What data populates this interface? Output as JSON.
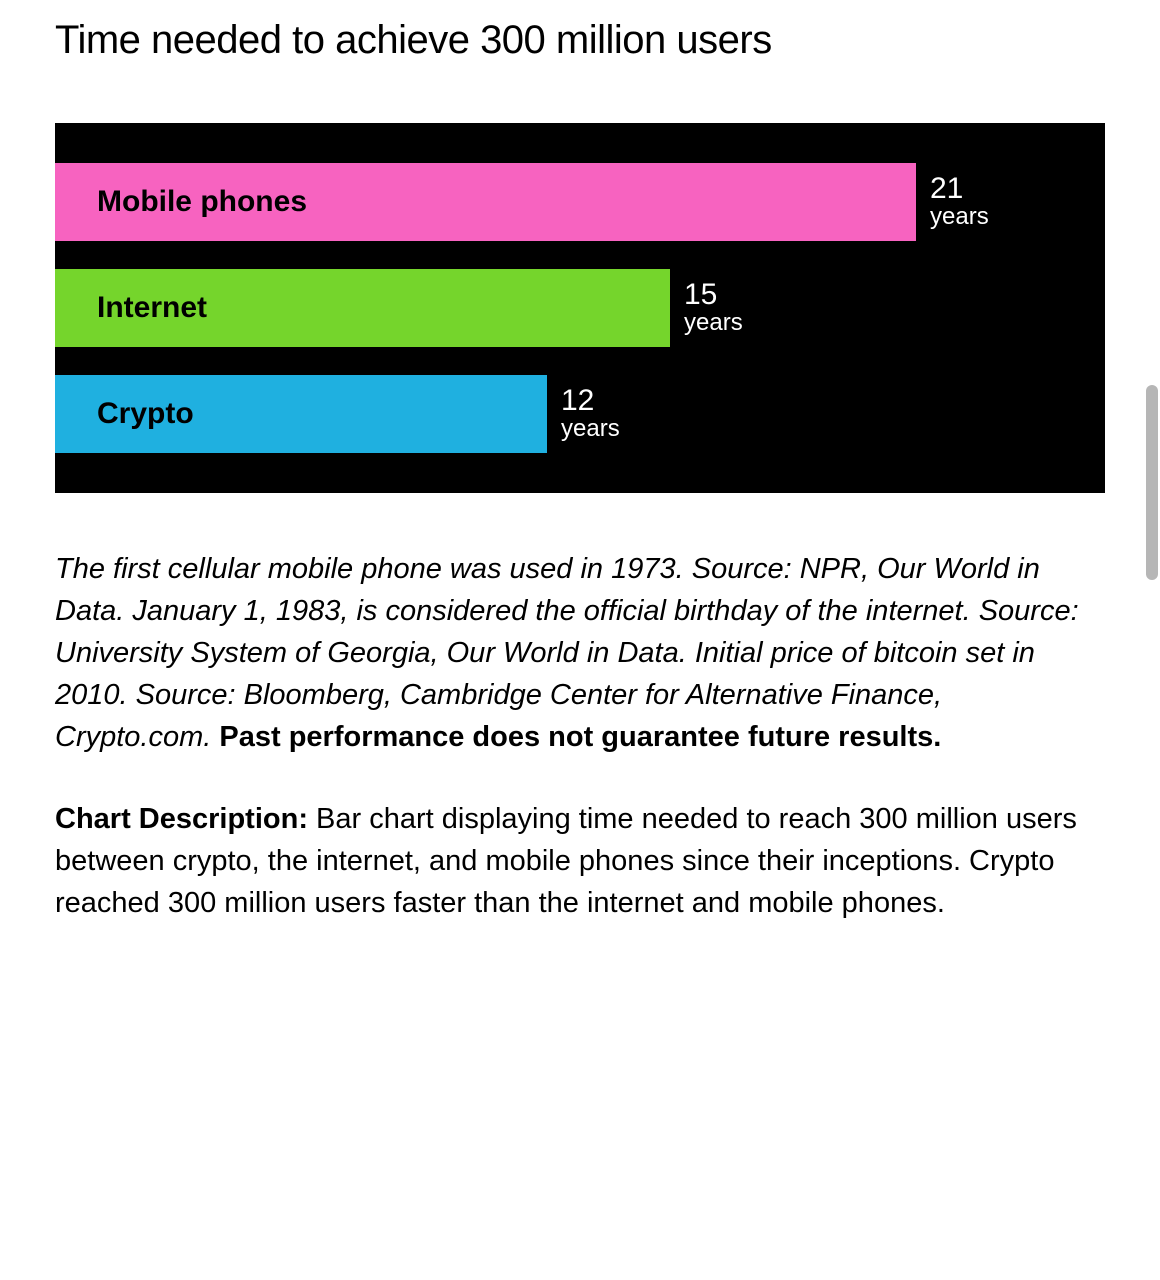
{
  "title": "Time needed to achieve 300 million users",
  "chart": {
    "type": "bar",
    "background_color": "#000000",
    "max_value": 21,
    "unit": "years",
    "bar_full_width_pct": 82,
    "bars": [
      {
        "label": "Mobile phones",
        "value": 21,
        "color": "#f763c0"
      },
      {
        "label": "Internet",
        "value": 15,
        "color": "#75d52c"
      },
      {
        "label": "Crypto",
        "value": 12,
        "color": "#1fb0e0"
      }
    ],
    "bar_label_fontsize": 30,
    "value_fontsize": 30,
    "unit_fontsize": 24,
    "value_color": "#ffffff",
    "bar_label_color": "#000000"
  },
  "caption": {
    "italic_text": "The first cellular mobile phone was used in 1973. Source: NPR, Our World in Data. January 1, 1983, is considered the official birthday of the internet. Source: University System of Georgia, Our World in Data. Initial price of bitcoin set in 2010. Source: Bloomberg, Cambridge Center for Alternative Finance, Crypto.com. ",
    "bold_text": "Past performance does not guarantee future results."
  },
  "description": {
    "label": "Chart Description: ",
    "text": "Bar chart displaying time needed to reach 300 million users between crypto, the internet, and mobile phones since their inceptions. Crypto reached 300 million users faster than the internet and mobile phones."
  }
}
